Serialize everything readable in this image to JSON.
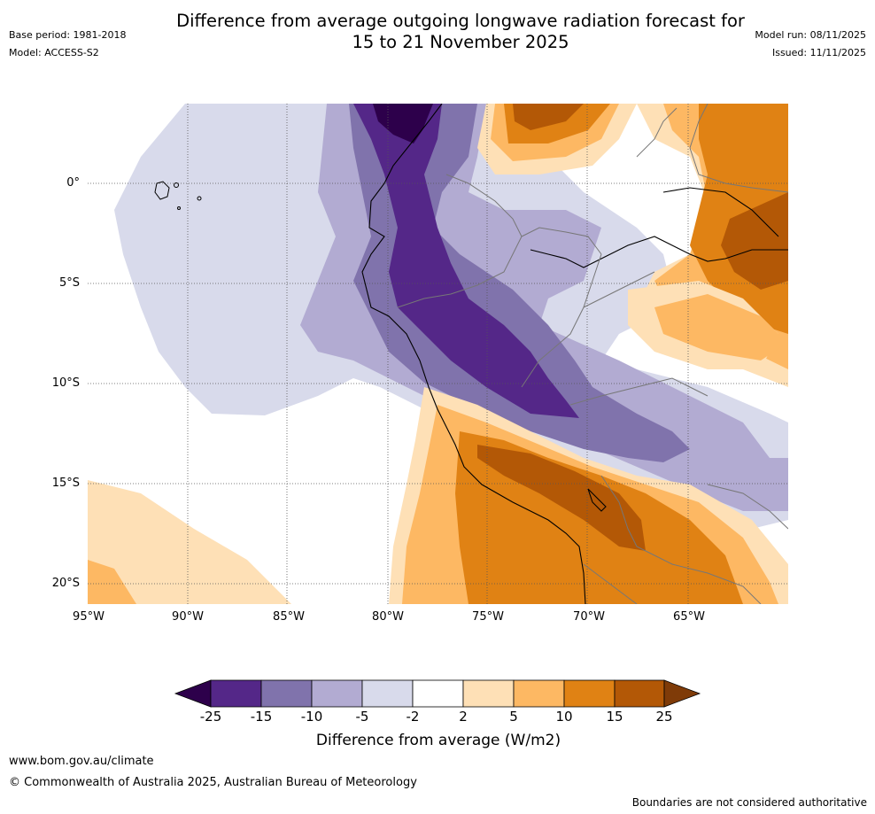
{
  "header": {
    "title_line1": "Difference from average outgoing longwave radiation forecast for",
    "title_line2": "15 to 21 November 2025",
    "base_period": "Base period: 1981-2018",
    "model": "Model: ACCESS-S2",
    "model_run": "Model run: 08/11/2025",
    "issued": "Issued: 11/11/2025"
  },
  "map": {
    "lat_labels": [
      "0°",
      "5°S",
      "10°S",
      "15°S",
      "20°S"
    ],
    "lon_labels": [
      "95°W",
      "90°W",
      "85°W",
      "80°W",
      "75°W",
      "70°W",
      "65°W"
    ]
  },
  "colorbar": {
    "ticks": [
      "-25",
      "-15",
      "-10",
      "-5",
      "-2",
      "2",
      "5",
      "10",
      "15",
      "25"
    ],
    "colors": [
      "#2d004b",
      "#542788",
      "#8073ac",
      "#b2abd2",
      "#d8daeb",
      "#ffffff",
      "#fee0b6",
      "#fdb863",
      "#e08214",
      "#b35806",
      "#7f3b08"
    ],
    "label": "Difference from average (W/m2)"
  },
  "footer": {
    "website": "www.bom.gov.au/climate",
    "copyright": "© Commonwealth of Australia 2025, Australian Bureau of Meteorology",
    "disclaimer": "Boundaries are not considered authoritative"
  }
}
